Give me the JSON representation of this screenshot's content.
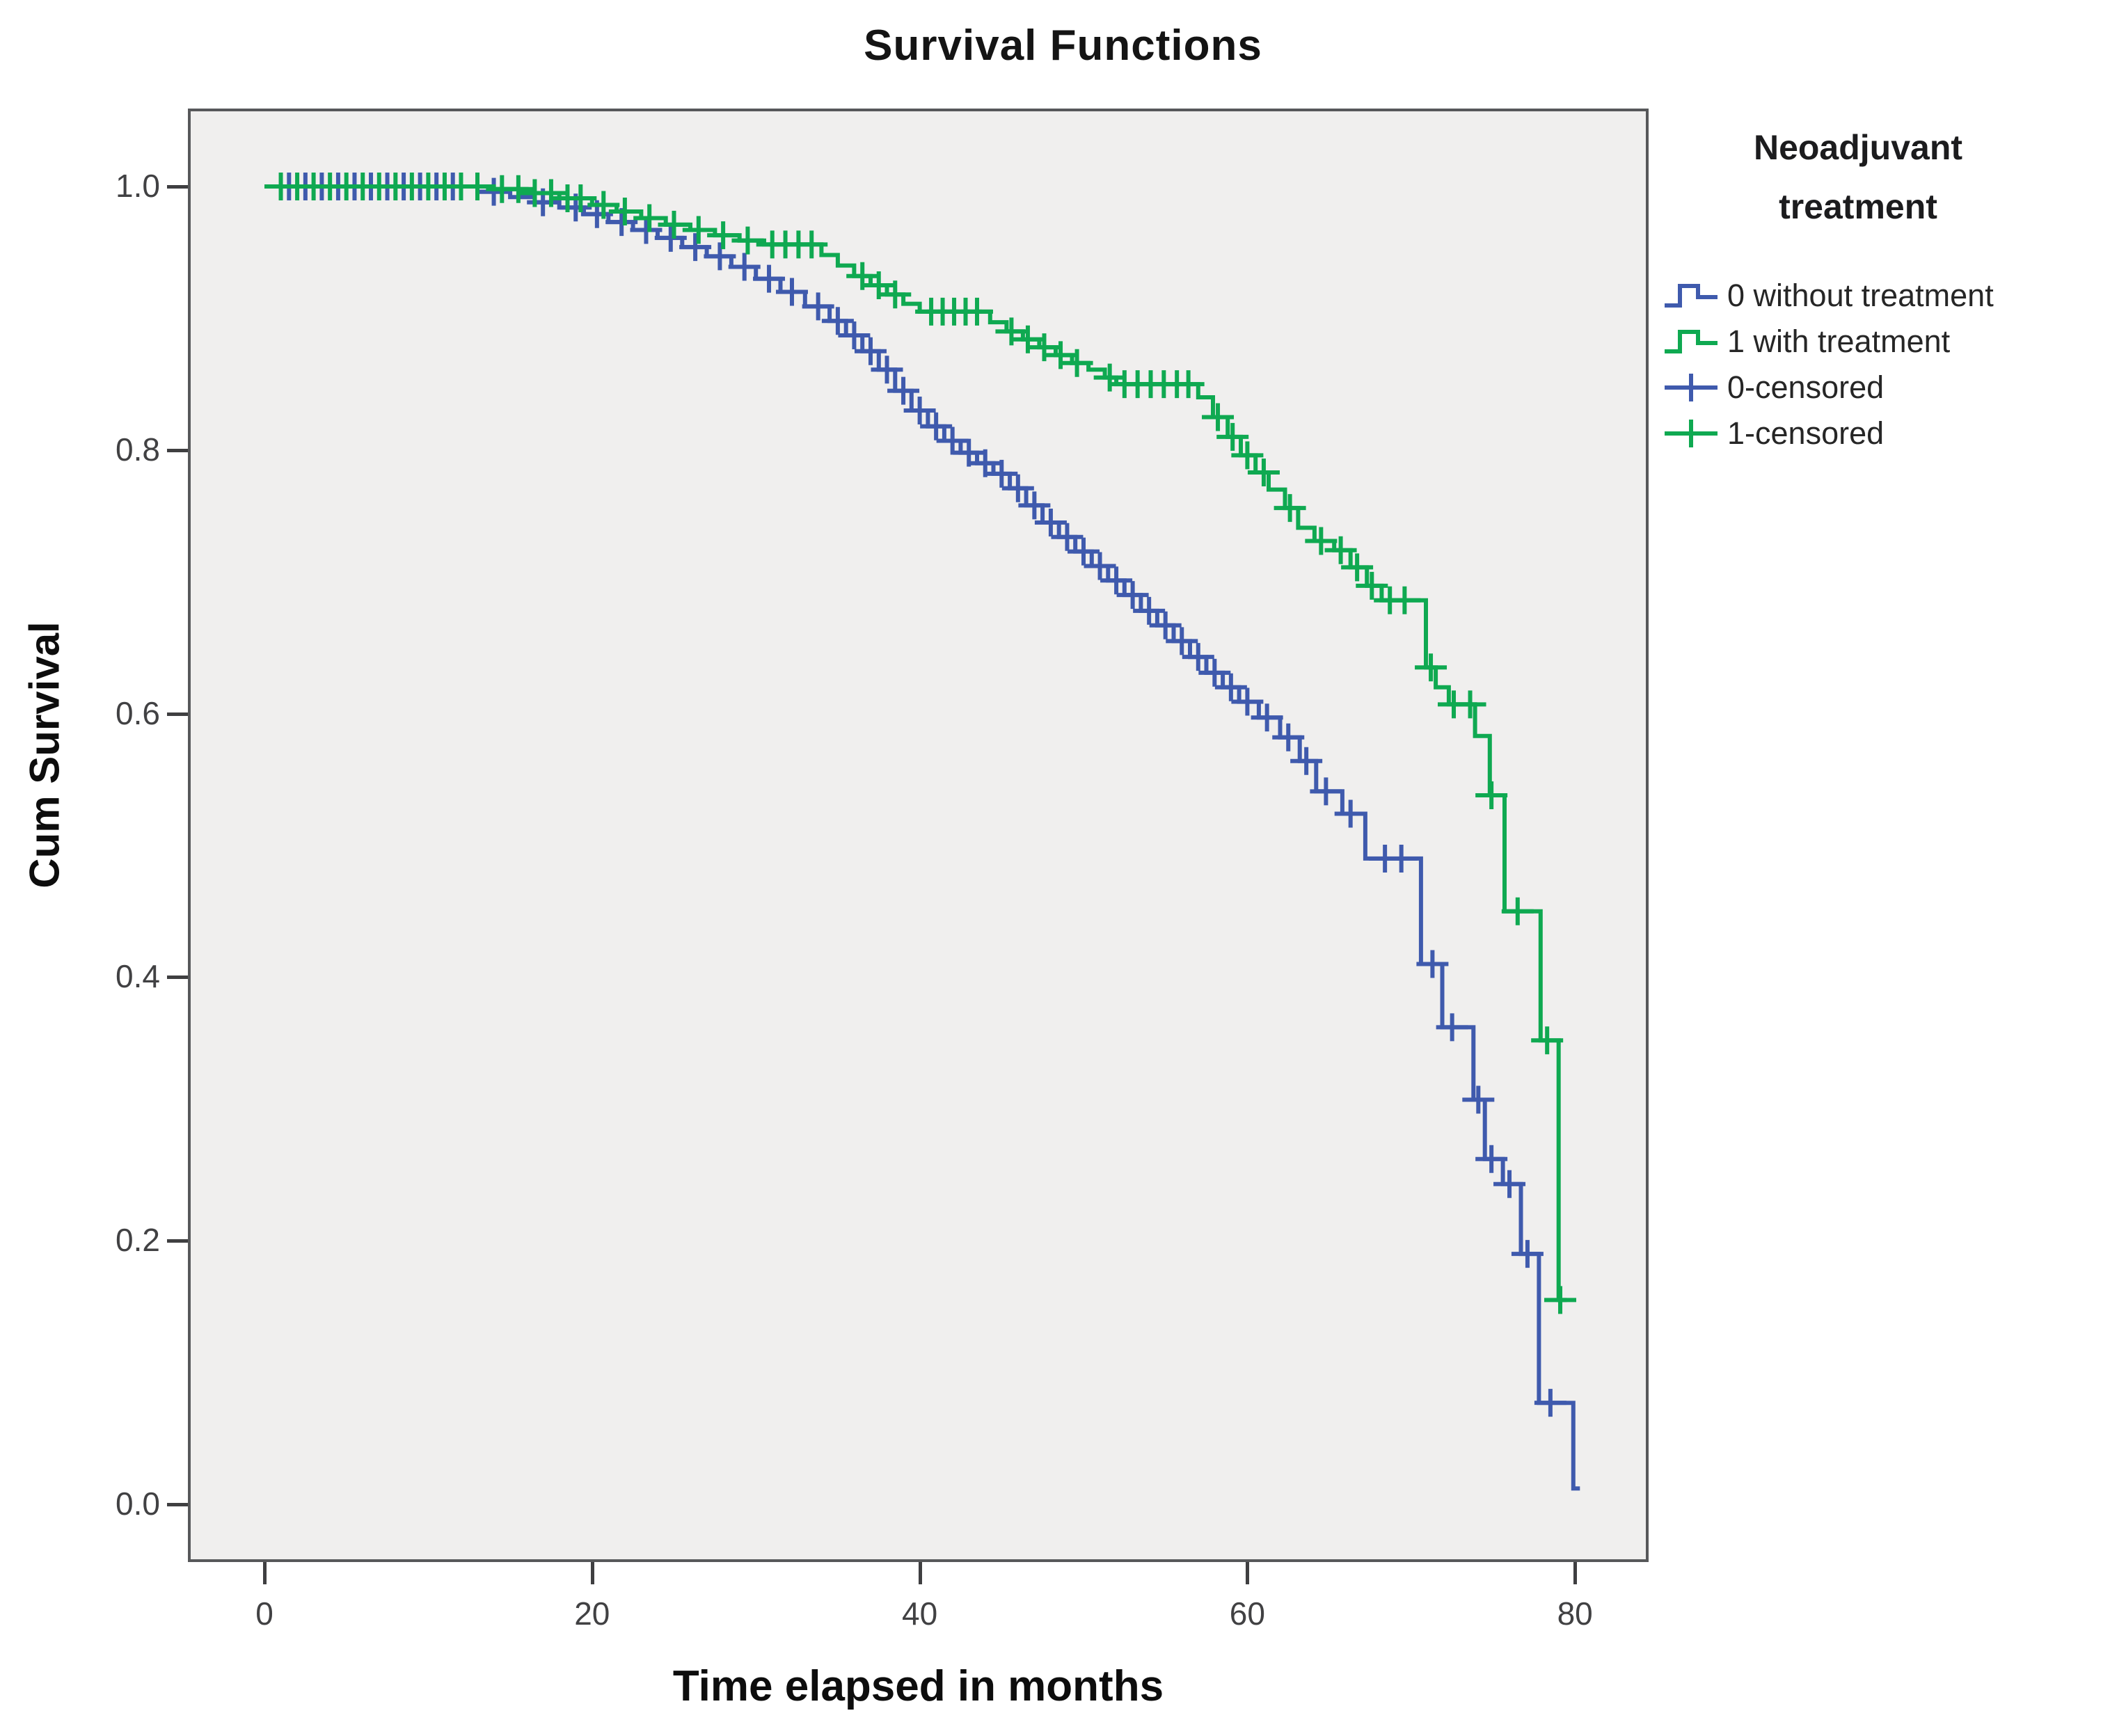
{
  "title": "Survival Functions",
  "x_axis": {
    "label": "Time elapsed in months",
    "ticks": [
      "0",
      "20",
      "40",
      "60",
      "80"
    ],
    "tick_values": [
      0,
      20,
      40,
      60,
      80
    ]
  },
  "y_axis": {
    "label": "Cum Survival",
    "ticks": [
      "1.0",
      "0.8",
      "0.6",
      "0.4",
      "0.2",
      "0.0"
    ],
    "tick_values": [
      1.0,
      0.8,
      0.6,
      0.4,
      0.2,
      0.0
    ]
  },
  "legend": {
    "title_lines": [
      "Neoadjuvant",
      "treatment"
    ],
    "items": [
      {
        "label": "0 without treatment",
        "swatch": "step-line",
        "color": "#3f5aad"
      },
      {
        "label": "1 with treatment",
        "swatch": "step-line",
        "color": "#0fa951"
      },
      {
        "label": "0-censored",
        "swatch": "censor-cross",
        "color": "#3f5aad"
      },
      {
        "label": "1-censored",
        "swatch": "censor-cross",
        "color": "#0fa951"
      }
    ]
  },
  "colors": {
    "curve_without": "#3f5aad",
    "curve_with": "#0fa951",
    "plot_background": "#f0efee",
    "frame": "#57585a",
    "tick": "#3f3f41"
  },
  "chart_data": {
    "type": "line",
    "subtype": "kaplan-meier-step",
    "title": "Survival Functions",
    "xlabel": "Time elapsed in months",
    "ylabel": "Cum Survival",
    "xlim": [
      -4.6,
      84.4
    ],
    "ylim": [
      -0.043,
      1.058
    ],
    "grid": false,
    "legend_position": "right",
    "series": [
      {
        "name": "0 without treatment",
        "color": "#3f5aad",
        "end_time": 80.3,
        "steps": [
          [
            0,
            1.0
          ],
          [
            13,
            0.996
          ],
          [
            15,
            0.992
          ],
          [
            16.5,
            0.988
          ],
          [
            18,
            0.984
          ],
          [
            19.5,
            0.979
          ],
          [
            21,
            0.973
          ],
          [
            22.5,
            0.967
          ],
          [
            24,
            0.961
          ],
          [
            25.5,
            0.954
          ],
          [
            27,
            0.947
          ],
          [
            28.5,
            0.939
          ],
          [
            30,
            0.93
          ],
          [
            31.5,
            0.92
          ],
          [
            33,
            0.909
          ],
          [
            34.5,
            0.898
          ],
          [
            35.5,
            0.887
          ],
          [
            36.5,
            0.875
          ],
          [
            37.5,
            0.861
          ],
          [
            38.5,
            0.845
          ],
          [
            39.5,
            0.83
          ],
          [
            40.5,
            0.818
          ],
          [
            41.5,
            0.807
          ],
          [
            42.5,
            0.798
          ],
          [
            43.5,
            0.79
          ],
          [
            44.5,
            0.782
          ],
          [
            45.5,
            0.771
          ],
          [
            46.5,
            0.758
          ],
          [
            47.5,
            0.745
          ],
          [
            48.5,
            0.734
          ],
          [
            49.5,
            0.723
          ],
          [
            50.5,
            0.712
          ],
          [
            51.5,
            0.701
          ],
          [
            52.5,
            0.69
          ],
          [
            53.5,
            0.678
          ],
          [
            54.5,
            0.667
          ],
          [
            55.5,
            0.655
          ],
          [
            56.5,
            0.643
          ],
          [
            57.5,
            0.631
          ],
          [
            58.5,
            0.62
          ],
          [
            59.5,
            0.609
          ],
          [
            60.7,
            0.597
          ],
          [
            62,
            0.582
          ],
          [
            63.2,
            0.564
          ],
          [
            64.2,
            0.541
          ],
          [
            65.8,
            0.524
          ],
          [
            67.2,
            0.49
          ],
          [
            70.6,
            0.41
          ],
          [
            71.9,
            0.362
          ],
          [
            73.8,
            0.307
          ],
          [
            74.5,
            0.262
          ],
          [
            75.6,
            0.243
          ],
          [
            76.7,
            0.19
          ],
          [
            77.8,
            0.077
          ],
          [
            79.9,
            0.012
          ]
        ],
        "censor_times": [
          1.5,
          2.5,
          3.5,
          4.5,
          5.5,
          6.5,
          7.5,
          8.5,
          9.5,
          10.5,
          11.5,
          14,
          17,
          19,
          20.3,
          21.8,
          23.3,
          24.8,
          26.3,
          27.8,
          29.3,
          30.8,
          32.2,
          33.8,
          35,
          36,
          37,
          38,
          39,
          40,
          41,
          42,
          43,
          44,
          45,
          46,
          47,
          48,
          49,
          50,
          51,
          52,
          53,
          54,
          55,
          56,
          57,
          58,
          59,
          60,
          61.2,
          62.5,
          63.6,
          64.8,
          66.3,
          68.4,
          69.4,
          71.3,
          72.5,
          74.1,
          74.9,
          76.0,
          77.1,
          78.5
        ]
      },
      {
        "name": "1 with treatment",
        "color": "#0fa951",
        "end_time": 79.5,
        "steps": [
          [
            0,
            1.0
          ],
          [
            14,
            0.998
          ],
          [
            16,
            0.995
          ],
          [
            18,
            0.991
          ],
          [
            20,
            0.986
          ],
          [
            21.5,
            0.981
          ],
          [
            23,
            0.976
          ],
          [
            24.5,
            0.971
          ],
          [
            26,
            0.967
          ],
          [
            27.5,
            0.963
          ],
          [
            29,
            0.959
          ],
          [
            30.5,
            0.956
          ],
          [
            34,
            0.948
          ],
          [
            35,
            0.94
          ],
          [
            36,
            0.932
          ],
          [
            37,
            0.925
          ],
          [
            38,
            0.918
          ],
          [
            39,
            0.911
          ],
          [
            40,
            0.905
          ],
          [
            44.3,
            0.897
          ],
          [
            45.3,
            0.89
          ],
          [
            46.3,
            0.884
          ],
          [
            47.3,
            0.878
          ],
          [
            48.3,
            0.872
          ],
          [
            49.3,
            0.866
          ],
          [
            50.3,
            0.861
          ],
          [
            51.3,
            0.855
          ],
          [
            52,
            0.85
          ],
          [
            57,
            0.84
          ],
          [
            57.9,
            0.825
          ],
          [
            58.8,
            0.81
          ],
          [
            59.6,
            0.796
          ],
          [
            60.5,
            0.783
          ],
          [
            61.3,
            0.77
          ],
          [
            62.3,
            0.756
          ],
          [
            63.1,
            0.741
          ],
          [
            64.1,
            0.731
          ],
          [
            65.3,
            0.724
          ],
          [
            66.3,
            0.711
          ],
          [
            67.3,
            0.697
          ],
          [
            68.2,
            0.686
          ],
          [
            70.9,
            0.635
          ],
          [
            71.5,
            0.62
          ],
          [
            72.3,
            0.607
          ],
          [
            73.9,
            0.583
          ],
          [
            74.8,
            0.538
          ],
          [
            75.7,
            0.45
          ],
          [
            77.9,
            0.352
          ],
          [
            79.0,
            0.155
          ]
        ],
        "censor_times": [
          1,
          2,
          3,
          4,
          5,
          6,
          7,
          8,
          9,
          10,
          11,
          12,
          13,
          14.5,
          15.5,
          16.5,
          17.5,
          18.5,
          19.3,
          20.7,
          22,
          23.5,
          25,
          26.5,
          28,
          29.5,
          31,
          31.8,
          32.6,
          33.4,
          36.5,
          37.5,
          38.5,
          40.7,
          41.4,
          42.1,
          42.8,
          43.5,
          45.6,
          46.6,
          47.6,
          48.6,
          49.6,
          51.6,
          52.5,
          53.3,
          54.1,
          54.9,
          55.7,
          56.4,
          58.2,
          59.1,
          60,
          61,
          62.6,
          64.5,
          65.7,
          66.7,
          67.6,
          68.7,
          69.6,
          71.2,
          72.6,
          73.6,
          74.9,
          76.5,
          78.3,
          79.1
        ]
      }
    ]
  }
}
